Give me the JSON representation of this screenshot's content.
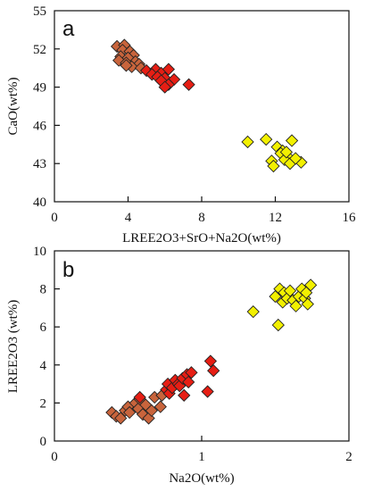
{
  "chart_data": [
    {
      "type": "scatter",
      "panel": "a",
      "xlabel": "LREE2O3+SrO+Na2O(wt%)",
      "ylabel": "CaO(wt%)",
      "xlim": [
        0,
        16
      ],
      "ylim": [
        40,
        55
      ],
      "xticks": [
        "0",
        "4",
        "8",
        "12",
        "16"
      ],
      "yticks": [
        "40",
        "43",
        "46",
        "49",
        "52",
        "55"
      ],
      "marker": "diamond",
      "series": [
        {
          "color": "#c8643c",
          "points": [
            [
              3.4,
              52.2
            ],
            [
              3.8,
              52.3
            ],
            [
              3.7,
              51.9
            ],
            [
              4.1,
              51.8
            ],
            [
              4.3,
              51.5
            ],
            [
              3.6,
              51.4
            ],
            [
              4.0,
              51.3
            ],
            [
              4.4,
              51.0
            ],
            [
              3.5,
              51.1
            ],
            [
              3.9,
              50.9
            ],
            [
              4.6,
              50.8
            ],
            [
              4.2,
              50.6
            ],
            [
              4.7,
              50.5
            ],
            [
              3.9,
              50.7
            ]
          ]
        },
        {
          "color": "#e61e14",
          "points": [
            [
              5.0,
              50.3
            ],
            [
              5.5,
              50.4
            ],
            [
              5.3,
              50.0
            ],
            [
              5.8,
              50.1
            ],
            [
              6.2,
              50.4
            ],
            [
              5.6,
              49.8
            ],
            [
              6.0,
              49.7
            ],
            [
              6.5,
              49.6
            ],
            [
              5.8,
              49.5
            ],
            [
              6.2,
              49.2
            ],
            [
              7.3,
              49.2
            ],
            [
              6.0,
              49.0
            ]
          ]
        },
        {
          "color": "#f2f000",
          "points": [
            [
              10.5,
              44.7
            ],
            [
              11.5,
              44.9
            ],
            [
              12.1,
              44.3
            ],
            [
              12.4,
              44.0
            ],
            [
              12.9,
              44.8
            ],
            [
              12.3,
              43.8
            ],
            [
              12.7,
              43.5
            ],
            [
              12.5,
              43.3
            ],
            [
              11.8,
              43.2
            ],
            [
              13.4,
              43.1
            ],
            [
              12.8,
              43.0
            ],
            [
              11.9,
              42.8
            ],
            [
              12.6,
              43.9
            ],
            [
              13.1,
              43.4
            ]
          ]
        }
      ]
    },
    {
      "type": "scatter",
      "panel": "b",
      "xlabel": "Na2O(wt%)",
      "ylabel": "LREE2O3 (wt%)",
      "xlim": [
        0,
        2
      ],
      "ylim": [
        0,
        10
      ],
      "xticks": [
        "0",
        "1",
        "2"
      ],
      "yticks": [
        "0",
        "2",
        "4",
        "6",
        "8",
        "10"
      ],
      "marker": "diamond",
      "series": [
        {
          "color": "#c8643c",
          "points": [
            [
              0.39,
              1.5
            ],
            [
              0.42,
              1.3
            ],
            [
              0.45,
              1.2
            ],
            [
              0.48,
              1.6
            ],
            [
              0.5,
              1.8
            ],
            [
              0.51,
              1.5
            ],
            [
              0.55,
              2.0
            ],
            [
              0.57,
              1.7
            ],
            [
              0.58,
              2.2
            ],
            [
              0.6,
              1.4
            ],
            [
              0.62,
              1.9
            ],
            [
              0.64,
              1.2
            ],
            [
              0.66,
              1.6
            ],
            [
              0.68,
              2.3
            ],
            [
              0.72,
              1.8
            ],
            [
              0.73,
              2.4
            ]
          ]
        },
        {
          "color": "#e61e14",
          "points": [
            [
              0.58,
              2.3
            ],
            [
              0.76,
              2.7
            ],
            [
              0.77,
              3.0
            ],
            [
              0.78,
              2.5
            ],
            [
              0.8,
              2.8
            ],
            [
              0.82,
              3.2
            ],
            [
              0.84,
              3.0
            ],
            [
              0.85,
              2.9
            ],
            [
              0.87,
              3.3
            ],
            [
              0.88,
              2.4
            ],
            [
              0.9,
              3.5
            ],
            [
              0.91,
              3.1
            ],
            [
              0.93,
              3.6
            ],
            [
              1.04,
              2.6
            ],
            [
              1.06,
              4.2
            ],
            [
              1.08,
              3.7
            ]
          ]
        },
        {
          "color": "#f2f000",
          "points": [
            [
              1.35,
              6.8
            ],
            [
              1.5,
              7.6
            ],
            [
              1.52,
              6.1
            ],
            [
              1.53,
              8.0
            ],
            [
              1.55,
              7.3
            ],
            [
              1.56,
              7.8
            ],
            [
              1.58,
              7.5
            ],
            [
              1.6,
              7.9
            ],
            [
              1.62,
              7.4
            ],
            [
              1.64,
              7.1
            ],
            [
              1.66,
              7.6
            ],
            [
              1.68,
              8.0
            ],
            [
              1.7,
              7.5
            ],
            [
              1.71,
              7.8
            ],
            [
              1.72,
              7.2
            ],
            [
              1.74,
              8.2
            ]
          ]
        }
      ]
    }
  ],
  "panels": [
    {
      "letter": "a"
    },
    {
      "letter": "b"
    }
  ]
}
